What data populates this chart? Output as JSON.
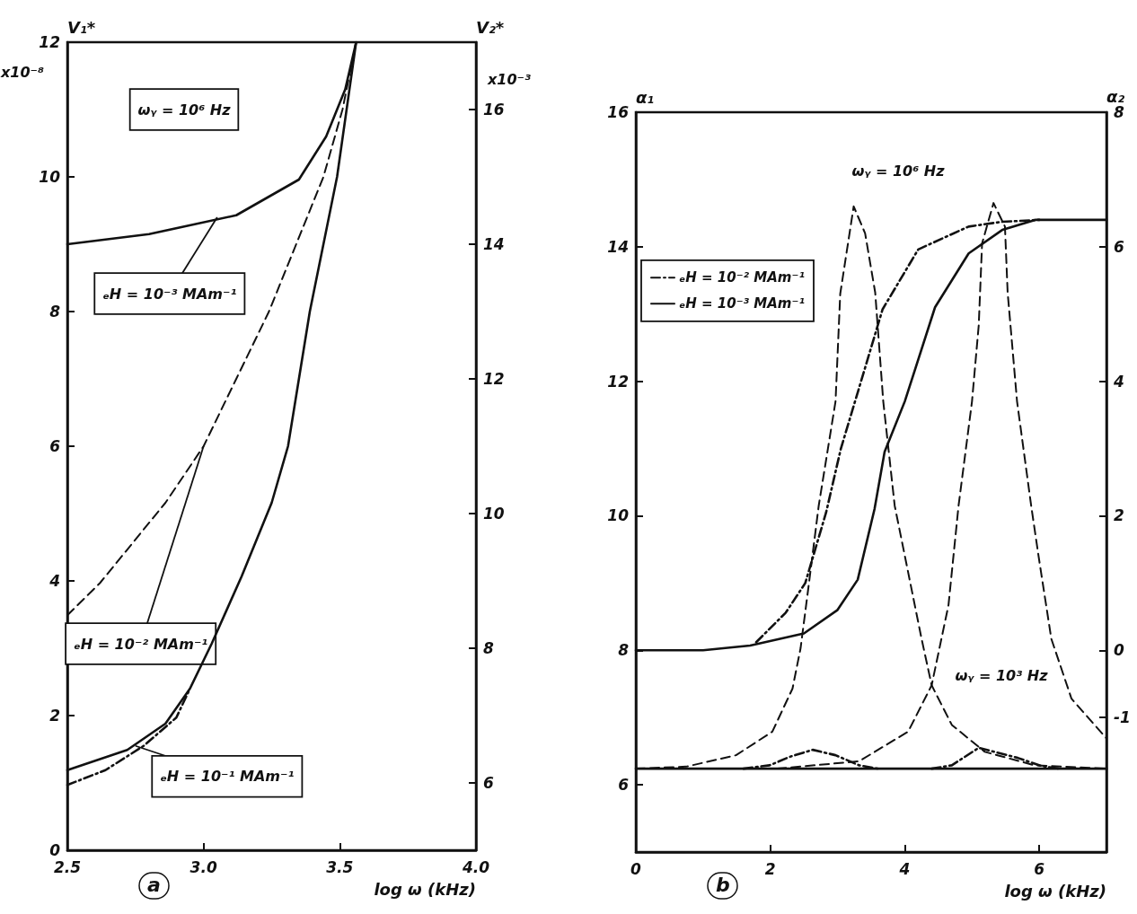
{
  "chart_data": [
    {
      "type": "line",
      "title": "a",
      "xlabel": "log ω (kHz)",
      "ylabel": "V₁*",
      "y2label": "V₂*",
      "xlim": [
        2.5,
        4.0
      ],
      "xticks": [
        2.5,
        {
          "value": 3,
          "label": "3.0"
        },
        3.5,
        {
          "value": 4,
          "label": "4.0"
        }
      ],
      "ylim": [
        0,
        12
      ],
      "yticks": [
        0,
        2,
        4,
        6,
        8,
        10,
        12
      ],
      "y2lim": [
        5,
        17
      ],
      "y2ticks": [
        6,
        8,
        10,
        12,
        14,
        16
      ],
      "marker": "none",
      "grid": false,
      "legend": false,
      "annotations": [
        "ωᵧ = 10⁶ Hz",
        "x10⁻⁸",
        "x10⁻³",
        {
          "text": "ₑH = 10⁻³ MAm⁻¹",
          "x": 3.05,
          "y": 9.4
        },
        {
          "text": "ₑH = 10⁻² MAm⁻¹",
          "x": 3.0,
          "y": 6.0
        },
        {
          "text": "ₑH = 10⁻¹ MAm⁻¹",
          "x": 2.75,
          "y": 1.55
        }
      ],
      "series": [
        {
          "color": "#111111",
          "line_style": "solid",
          "x": [
            2.5,
            2.8,
            3.12,
            3.35,
            3.45,
            3.52,
            3.56
          ],
          "values": [
            9.0,
            9.15,
            9.43,
            9.96,
            10.6,
            11.3,
            12.0
          ]
        },
        {
          "color": "#111111",
          "line_style": "dashed",
          "x": [
            2.5,
            2.62,
            2.86,
            3.0,
            3.12,
            3.24,
            3.34,
            3.44,
            3.51,
            3.56
          ],
          "values": [
            3.49,
            3.97,
            5.16,
            6.0,
            7.0,
            8.0,
            9.0,
            10.0,
            11.0,
            12.0
          ]
        },
        {
          "color": "#111111",
          "line_style": "solid",
          "x": [
            2.5,
            2.72,
            2.86,
            2.95,
            3.03,
            3.14,
            3.25,
            3.31,
            3.39,
            3.49,
            3.56
          ],
          "values": [
            1.19,
            1.49,
            1.88,
            2.4,
            3.07,
            4.07,
            5.16,
            6.0,
            8.0,
            10.0,
            12.0
          ]
        },
        {
          "color": "#111111",
          "line_style": "dashdot",
          "x": [
            2.5,
            2.64,
            2.78,
            2.9,
            2.95
          ],
          "values": [
            0.97,
            1.19,
            1.55,
            1.97,
            2.4
          ]
        }
      ]
    },
    {
      "type": "line",
      "title": "b",
      "xlabel": "log ω (kHz)",
      "ylabel": "α₁",
      "y2label": "α₂",
      "xlim": [
        0,
        7
      ],
      "xticks": [
        0,
        2,
        4,
        6
      ],
      "ylim": [
        5,
        16
      ],
      "yticks": [
        6,
        8,
        10,
        12,
        14,
        16
      ],
      "y2lim": [
        -3,
        8
      ],
      "y2ticks": [
        -1,
        0,
        2,
        4,
        6,
        8
      ],
      "marker": "none",
      "grid": false,
      "legend": "left",
      "annotations": [
        "ωᵧ = 10⁶ Hz",
        "ωᵧ = 10³ Hz"
      ],
      "series": [
        {
          "name": "ₑH = 10⁻² MAm⁻¹",
          "color": "#111111",
          "line_style": "dashdot",
          "x": [
            1.79,
            2.23,
            2.52,
            2.83,
            3.05,
            3.32,
            3.67,
            4.2,
            4.95,
            5.44,
            6.0
          ],
          "values": [
            8.12,
            8.56,
            9.0,
            10.05,
            11.0,
            11.9,
            13.07,
            13.96,
            14.3,
            14.37,
            14.4
          ]
        },
        {
          "name": "ₑH = 10⁻³ MAm⁻¹",
          "color": "#111111",
          "line_style": "solid",
          "x": [
            0,
            1,
            1.7,
            2.5,
            3.0,
            3.3,
            3.55,
            3.7,
            4.0,
            4.45,
            4.95,
            5.45,
            5.95,
            7.0
          ],
          "values": [
            8.0,
            8.0,
            8.07,
            8.25,
            8.6,
            9.05,
            10.1,
            10.95,
            11.7,
            13.1,
            13.9,
            14.25,
            14.4,
            14.4
          ]
        },
        {
          "color": "#111111",
          "line_style": "dashed",
          "axis": "y2",
          "x": [
            0,
            0.75,
            1.49,
            2.03,
            2.33,
            2.45,
            2.57,
            2.72,
            2.97,
            3.04,
            3.24,
            3.41,
            3.56,
            3.68,
            3.85,
            4.05,
            4.25,
            4.4,
            4.7,
            5.19,
            5.93,
            7.0
          ],
          "values": [
            -1.76,
            -1.73,
            -1.56,
            -1.21,
            -0.57,
            0.03,
            0.96,
            2.15,
            3.7,
            5.3,
            6.6,
            6.2,
            5.32,
            3.7,
            2.15,
            1.16,
            0.17,
            -0.52,
            -1.11,
            -1.51,
            -1.71,
            -1.76
          ]
        },
        {
          "color": "#111111",
          "line_style": "dashed",
          "axis": "y2",
          "x": [
            2.1,
            3.32,
            4.05,
            4.4,
            4.65,
            4.8,
            5.0,
            5.1,
            5.15,
            5.32,
            5.49,
            5.53,
            5.67,
            5.88,
            5.99,
            6.18,
            6.48,
            7.0
          ],
          "values": [
            -1.76,
            -1.65,
            -1.21,
            -0.52,
            0.67,
            2.15,
            3.7,
            4.83,
            6.05,
            6.65,
            6.3,
            5.32,
            3.7,
            2.15,
            1.4,
            0.17,
            -0.72,
            -1.31
          ]
        },
        {
          "color": "#111111",
          "line_style": "dashdot",
          "axis": "y2",
          "x": [
            1.6,
            1.99,
            2.3,
            2.63,
            2.97,
            3.32,
            3.6
          ],
          "values": [
            -1.76,
            -1.71,
            -1.58,
            -1.48,
            -1.56,
            -1.71,
            -1.76
          ]
        },
        {
          "color": "#111111",
          "line_style": "dashdot",
          "axis": "y2",
          "x": [
            4.4,
            4.7,
            5.1,
            5.68,
            6.03,
            6.3
          ],
          "values": [
            -1.76,
            -1.71,
            -1.45,
            -1.6,
            -1.72,
            -1.76
          ]
        },
        {
          "color": "#111111",
          "line_style": "solid",
          "x": [
            0,
            7
          ],
          "values": [
            6.24,
            6.24
          ]
        }
      ]
    }
  ]
}
